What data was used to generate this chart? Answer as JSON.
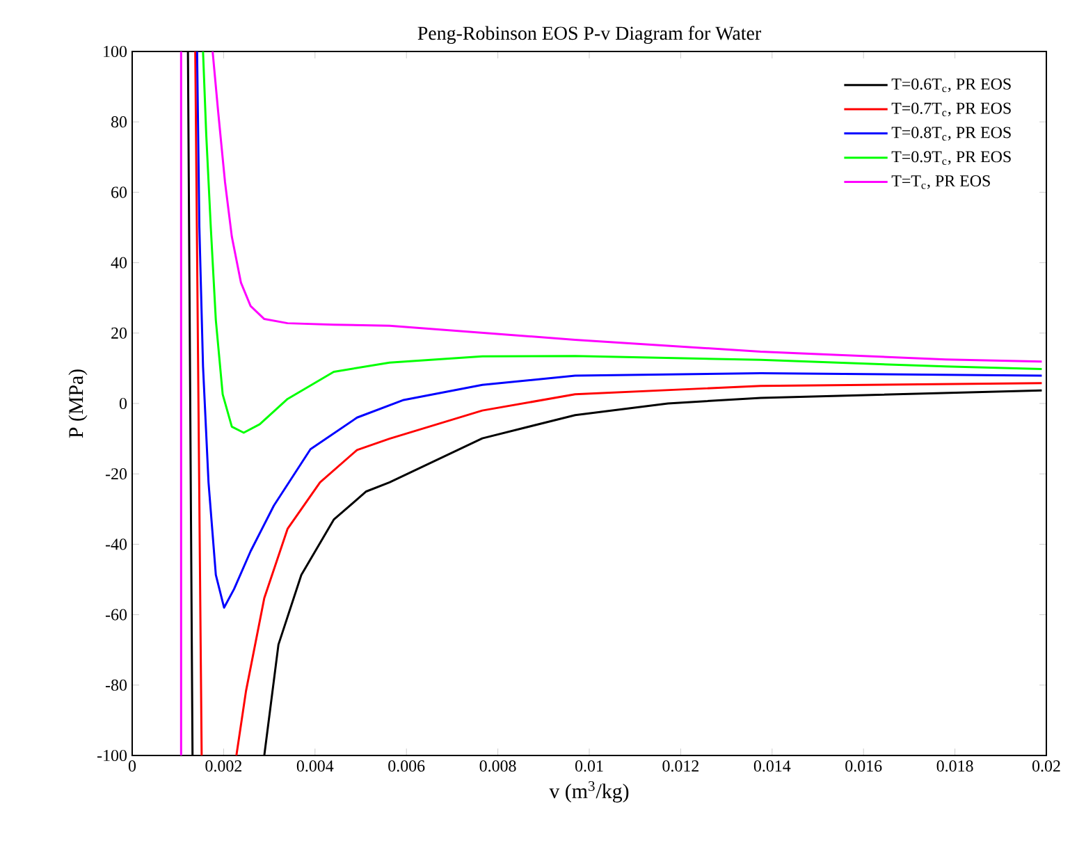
{
  "chart_data": {
    "type": "line",
    "title": "Peng-Robinson EOS P-v Diagram for Water",
    "xlabel": "v (m$^{3}$/kg)",
    "ylabel": "P (MPa)",
    "xlim": [
      0,
      0.02
    ],
    "ylim": [
      -100,
      100
    ],
    "xticks": [
      0,
      0.002,
      0.004,
      0.006,
      0.008,
      0.01,
      0.012,
      0.014,
      0.016,
      0.018,
      0.02
    ],
    "yticks": [
      -100,
      -80,
      -60,
      -40,
      -20,
      0,
      20,
      40,
      60,
      80,
      100
    ],
    "grid": false,
    "legend": "top right",
    "marker": "none",
    "line_style": "solid",
    "series": [
      {
        "name": "T=0.6T$_{c}$, PR EOS",
        "color": "#000000",
        "x": [
          0.00122,
          0.00132,
          0.002,
          0.00289,
          0.0032,
          0.0037,
          0.00441,
          0.00512,
          0.00563,
          0.00766,
          0.00969,
          0.01172,
          0.01375,
          0.0199
        ],
        "values": [
          100,
          -100,
          null,
          -100,
          -68.5,
          -48.7,
          -33,
          -25,
          -22.4,
          -9.9,
          -3.3,
          0,
          1.6,
          3.7
        ]
      },
      {
        "name": "T=0.7T$_{c}$, PR EOS",
        "color": "#ff0000",
        "x": [
          0.00138,
          0.00152,
          0.002,
          0.00228,
          0.00249,
          0.00289,
          0.0034,
          0.00411,
          0.00492,
          0.00563,
          0.00766,
          0.00969,
          0.01375,
          0.0199
        ],
        "values": [
          100,
          -100,
          null,
          -100,
          -81.7,
          -55.3,
          -35.6,
          -22.4,
          -13.2,
          -10,
          -2,
          2.6,
          5,
          5.8
        ]
      },
      {
        "name": "T=0.8T$_{c}$, PR EOS",
        "color": "#0000ff",
        "x": [
          0.00142,
          0.00147,
          0.00155,
          0.00167,
          0.00183,
          0.00201,
          0.00223,
          0.00259,
          0.0031,
          0.0039,
          0.00492,
          0.00594,
          0.00766,
          0.00969,
          0.01375,
          0.0199
        ],
        "values": [
          100,
          50,
          10.5,
          -22.4,
          -48.7,
          -58,
          -52.7,
          -42,
          -29,
          -13,
          -4,
          1,
          5.3,
          7.9,
          8.6,
          7.9
        ]
      },
      {
        "name": "T=0.9T$_{c}$, PR EOS",
        "color": "#00ff00",
        "x": [
          0.00155,
          0.00162,
          0.00172,
          0.00183,
          0.00198,
          0.00218,
          0.00244,
          0.00279,
          0.0034,
          0.00441,
          0.00563,
          0.00766,
          0.00969,
          0.01375,
          0.0178,
          0.0199
        ],
        "values": [
          100,
          76.4,
          50,
          23.7,
          2.6,
          -6.6,
          -8.3,
          -5.9,
          1.3,
          9.0,
          11.6,
          13.4,
          13.5,
          12.4,
          10.5,
          9.8
        ]
      },
      {
        "name": "T=T$_{c}$, PR EOS",
        "color": "#ff00ff",
        "x": [
          0.00107,
          0.00107,
          0.0014,
          0.00176,
          0.00188,
          0.00203,
          0.00218,
          0.00238,
          0.00259,
          0.00289,
          0.0034,
          0.00441,
          0.00563,
          0.00969,
          0.01375,
          0.0178,
          0.0199
        ],
        "values": [
          100,
          -100,
          null,
          100,
          83,
          63,
          47.4,
          34.3,
          27.7,
          24,
          22.8,
          22.4,
          22.1,
          18.1,
          14.7,
          12.5,
          11.9
        ]
      }
    ]
  }
}
